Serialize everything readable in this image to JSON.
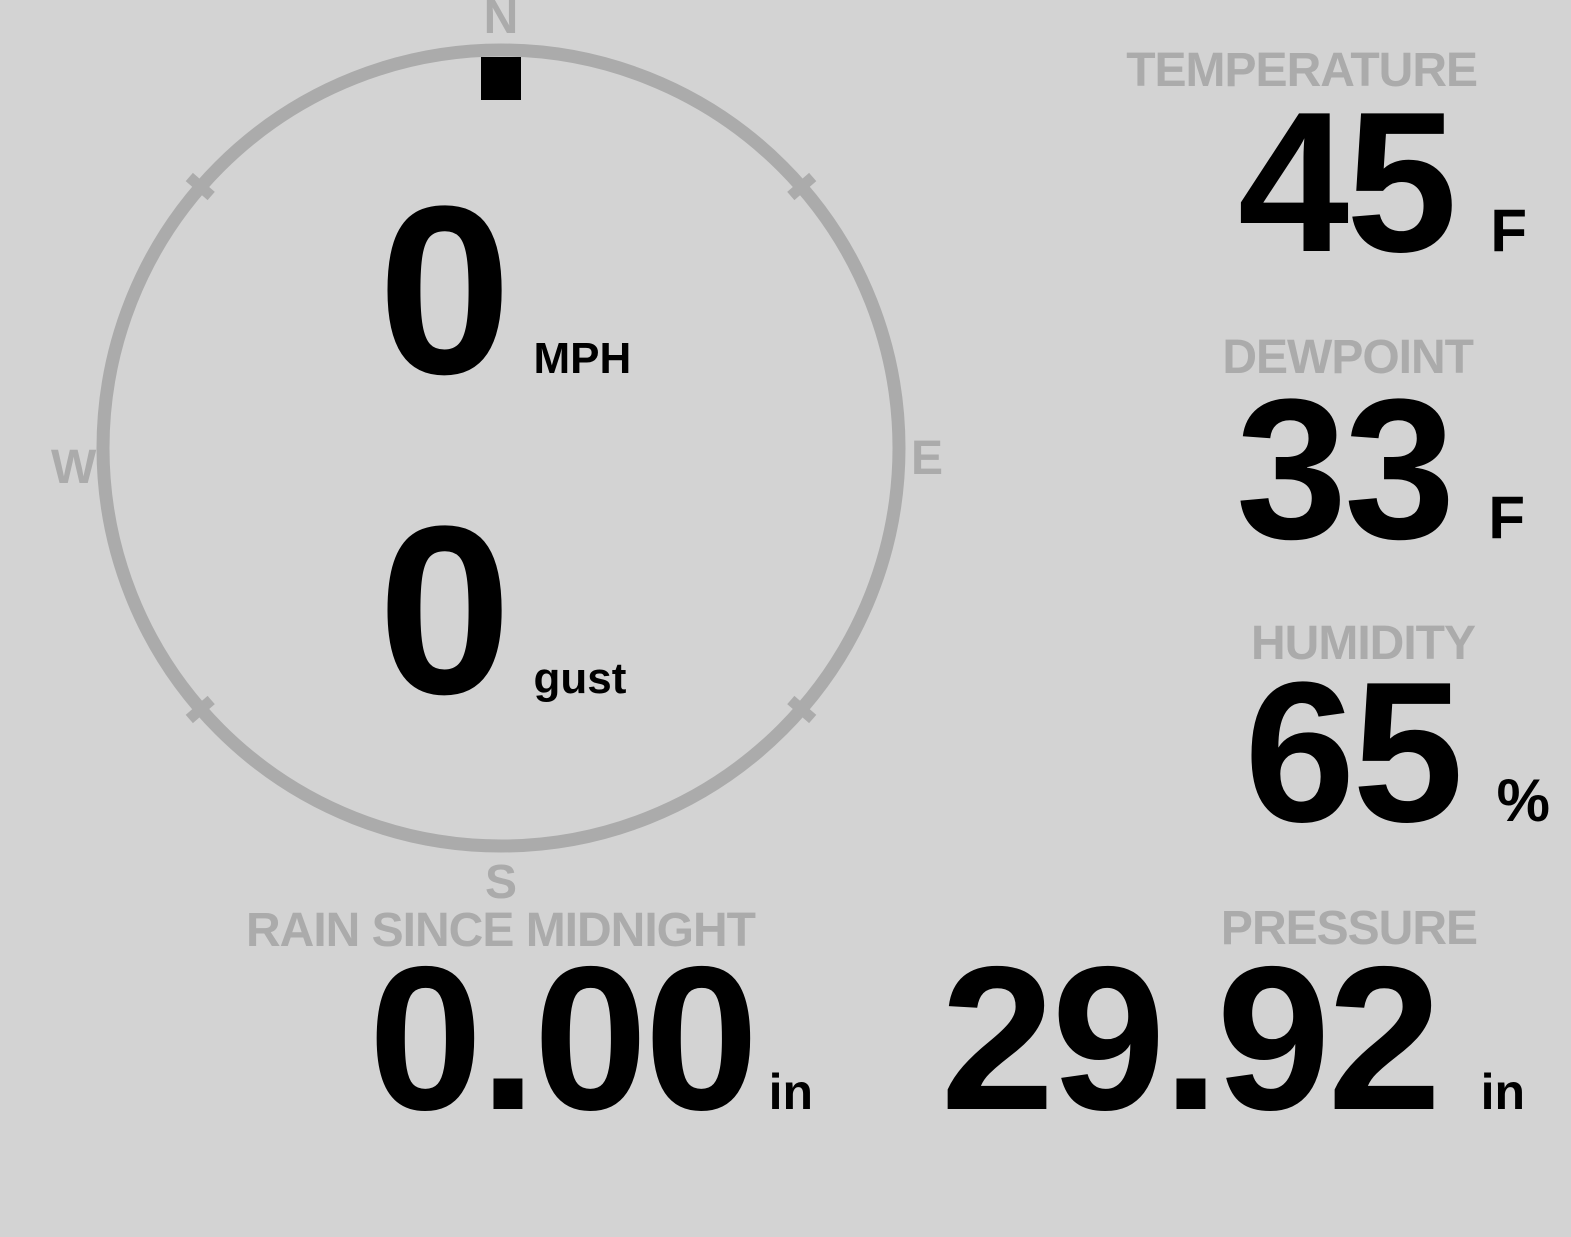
{
  "colors": {
    "background": "#d3d3d3",
    "muted": "#ababab",
    "ink": "#000000"
  },
  "compass": {
    "cardinals": {
      "north": "N",
      "east": "E",
      "south": "S",
      "west": "W"
    },
    "wind": {
      "speed_value": "0",
      "speed_unit": "MPH",
      "gust_value": "0",
      "gust_unit": "gust",
      "direction_deg": 0
    }
  },
  "metrics": {
    "temperature": {
      "label": "TEMPERATURE",
      "value": "45",
      "unit": "F"
    },
    "dewpoint": {
      "label": "DEWPOINT",
      "value": "33",
      "unit": "F"
    },
    "humidity": {
      "label": "HUMIDITY",
      "value": "65",
      "unit": "%"
    },
    "rain": {
      "label": "RAIN SINCE MIDNIGHT",
      "value": "0.00",
      "unit": "in"
    },
    "pressure": {
      "label": "PRESSURE",
      "value": "29.92",
      "unit": "in"
    }
  }
}
